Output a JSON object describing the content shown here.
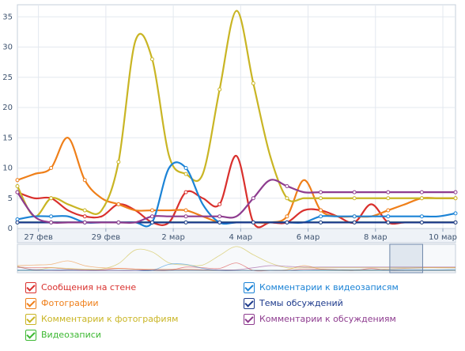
{
  "chart_data": {
    "type": "line",
    "ylim": [
      0,
      37
    ],
    "yticks": [
      0,
      5,
      10,
      15,
      20,
      25,
      30,
      35
    ],
    "x": [
      0,
      1,
      2,
      3,
      4,
      5,
      6,
      7,
      8,
      9,
      10,
      11,
      12,
      13,
      14,
      15,
      16,
      17,
      18,
      19,
      20,
      21,
      22,
      23,
      24,
      25,
      26
    ],
    "xtick_labels": [
      {
        "x": 1.25,
        "label": "27 фев"
      },
      {
        "x": 5.25,
        "label": "29 фев"
      },
      {
        "x": 9.25,
        "label": "2 мар"
      },
      {
        "x": 13.25,
        "label": "4 мар"
      },
      {
        "x": 17.25,
        "label": "6 мар"
      },
      {
        "x": 21.25,
        "label": "8 мар"
      },
      {
        "x": 25.25,
        "label": "10 мар"
      }
    ],
    "grid": true,
    "legend_position": "bottom",
    "series": [
      {
        "name": "Сообщения на стене",
        "color": "#d9302d",
        "values": [
          6,
          5,
          5,
          3,
          2,
          2,
          4,
          3,
          1,
          1,
          6,
          5,
          4,
          12,
          1,
          1,
          1,
          3,
          3,
          2,
          1,
          4,
          1,
          1,
          1,
          1,
          1
        ]
      },
      {
        "name": "Фотографии",
        "color": "#ef7f19",
        "values": [
          8,
          9,
          10,
          15,
          8,
          5,
          4,
          3,
          3,
          3,
          3,
          2,
          1,
          1,
          1,
          1,
          2,
          8,
          3,
          2,
          2,
          2,
          3,
          4,
          5,
          5,
          5
        ]
      },
      {
        "name": "Комментарии к фотографиям",
        "color": "#c9b524",
        "values": [
          7,
          2,
          5,
          4,
          3,
          3,
          11,
          31,
          28,
          12,
          9,
          9,
          23,
          36,
          24,
          12,
          5,
          5,
          5,
          5,
          5,
          5,
          5,
          5,
          5,
          5,
          5
        ]
      },
      {
        "name": "Видеозаписи",
        "color": "#3cb832",
        "values": [
          1,
          1,
          1,
          1,
          1,
          1,
          1,
          1,
          1,
          1,
          1,
          1,
          1,
          1,
          1,
          1,
          1,
          1,
          1,
          1,
          1,
          1,
          1,
          1,
          1,
          1,
          1
        ]
      },
      {
        "name": "Комментарии к видеозаписям",
        "color": "#1b83d6",
        "values": [
          1.5,
          2,
          2,
          2,
          1,
          1,
          1,
          1,
          1,
          10,
          10,
          4,
          1,
          1,
          1,
          1,
          1,
          1,
          2,
          2,
          2,
          2,
          2,
          2,
          2,
          2,
          2.5
        ]
      },
      {
        "name": "Темы обсуждений",
        "color": "#1d3a8c",
        "values": [
          1,
          1,
          1,
          1,
          1,
          1,
          1,
          1,
          1,
          1,
          1,
          1,
          1,
          1,
          1,
          1,
          1,
          1,
          1,
          1,
          1,
          1,
          1,
          1,
          1,
          1,
          1
        ]
      },
      {
        "name": "Комментарии к обсуждениям",
        "color": "#8e3c8f",
        "values": [
          6,
          2,
          1,
          1,
          1,
          1,
          1,
          1,
          2,
          2,
          2,
          2,
          2,
          2,
          5,
          8,
          7,
          6,
          6,
          6,
          6,
          6,
          6,
          6,
          6,
          6,
          6
        ]
      }
    ]
  },
  "navigator": {
    "window_start": 0.85,
    "window_end": 0.925
  }
}
